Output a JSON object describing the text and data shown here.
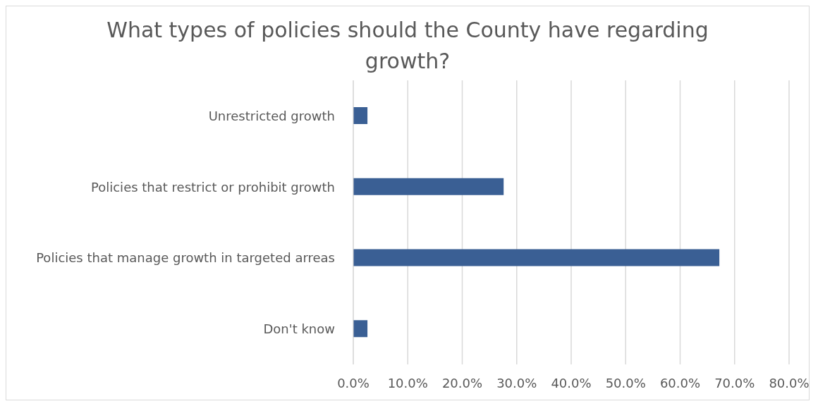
{
  "chart_data": {
    "type": "bar",
    "orientation": "horizontal",
    "title": "What types of policies should the County have regarding growth?",
    "categories": [
      "Unrestricted growth",
      "Policies that restrict or prohibit growth",
      "Policies that manage growth in targeted arreas",
      "Don't know"
    ],
    "values": [
      2.6,
      27.6,
      67.2,
      2.6
    ],
    "color": "#3a5f94",
    "xlim": [
      0,
      80
    ],
    "xticks": [
      {
        "value": 0,
        "label": "0.0%"
      },
      {
        "value": 10,
        "label": "10.0%"
      },
      {
        "value": 20,
        "label": "20.0%"
      },
      {
        "value": 30,
        "label": "30.0%"
      },
      {
        "value": 40,
        "label": "40.0%"
      },
      {
        "value": 50,
        "label": "50.0%"
      },
      {
        "value": 60,
        "label": "60.0%"
      },
      {
        "value": 70,
        "label": "70.0%"
      },
      {
        "value": 80,
        "label": "80.0%"
      }
    ],
    "grid": "x",
    "legend": false
  }
}
